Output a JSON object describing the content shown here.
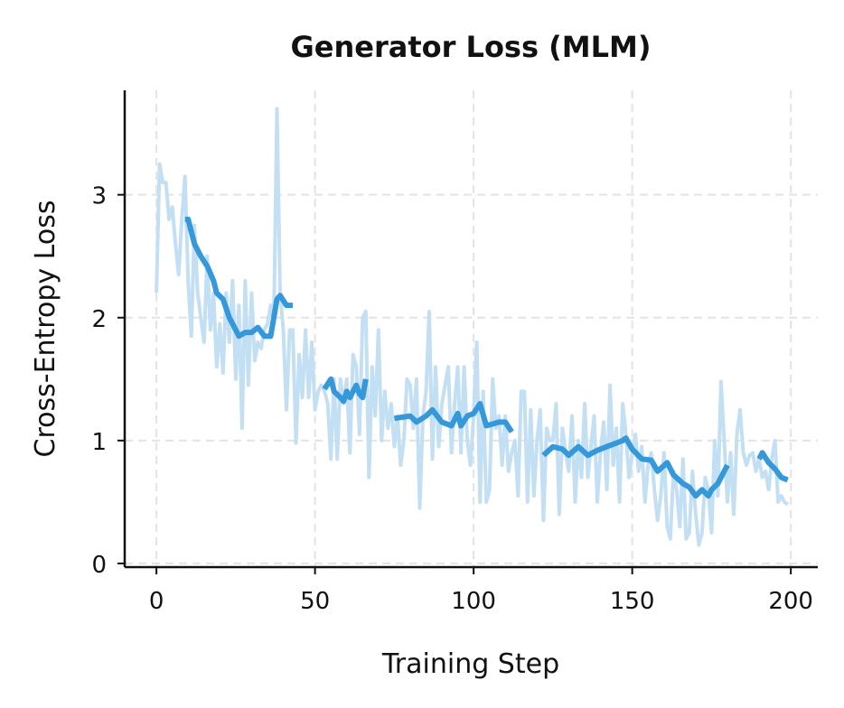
{
  "chart_data": {
    "type": "line",
    "title": "Generator Loss (MLM)",
    "xlabel": "Training Step",
    "ylabel": "Cross-Entropy Loss",
    "xlim": [
      -10,
      208.5
    ],
    "ylim": [
      -0.03,
      3.85
    ],
    "xticks": [
      0,
      50,
      100,
      150,
      200
    ],
    "yticks": [
      0,
      1,
      2,
      3
    ],
    "grid": true,
    "legend": "none",
    "colors": {
      "raw": "#c3dff4",
      "smoothed": "#3498db",
      "grid": "#e3e3e3",
      "axis": "#111111"
    },
    "series": [
      {
        "role": "raw",
        "x_start": 0,
        "values": [
          2.2,
          3.25,
          3.1,
          3.1,
          2.8,
          2.9,
          2.6,
          2.35,
          2.8,
          3.15,
          2.3,
          1.85,
          2.75,
          2.2,
          2.0,
          1.8,
          2.5,
          1.9,
          2.2,
          1.6,
          1.95,
          1.55,
          2.2,
          1.8,
          2.3,
          1.5,
          2.1,
          1.1,
          2.3,
          1.45,
          2.2,
          1.65,
          1.8,
          1.75,
          1.9,
          1.95,
          2.1,
          1.95,
          3.7,
          2.2,
          1.9,
          1.25,
          1.9,
          1.9,
          0.98,
          1.7,
          1.35,
          1.9,
          1.35,
          1.8,
          1.25,
          1.4,
          1.45,
          1.4,
          1.3,
          0.85,
          1.5,
          0.85,
          1.5,
          1.3,
          1.5,
          0.9,
          1.7,
          1.6,
          1.05,
          2.0,
          2.05,
          0.7,
          1.6,
          1.2,
          1.9,
          1.0,
          1.4,
          1.1,
          1.3,
          0.95,
          1.2,
          0.8,
          1.0,
          1.5,
          1.45,
          1.1,
          1.5,
          0.45,
          1.2,
          1.4,
          2.05,
          0.85,
          1.6,
          0.95,
          1.3,
          1.45,
          1.6,
          0.9,
          1.3,
          1.6,
          0.9,
          1.6,
          1.0,
          0.8,
          1.2,
          1.8,
          0.5,
          1.4,
          0.5,
          0.6,
          1.5,
          1.1,
          1.2,
          0.8,
          1.2,
          0.75,
          0.9,
          1.0,
          0.55,
          1.4,
          1.4,
          0.5,
          1.25,
          0.55,
          1.0,
          1.25,
          0.35,
          1.1,
          1.0,
          1.0,
          1.3,
          0.4,
          1.1,
          0.9,
          0.75,
          1.2,
          0.5,
          1.0,
          0.7,
          1.3,
          0.7,
          0.95,
          1.2,
          0.5,
          0.9,
          1.15,
          0.6,
          1.45,
          0.8,
          1.1,
          0.5,
          1.3,
          1.05,
          0.7,
          0.9,
          1.05,
          0.75,
          0.95,
          0.5,
          0.8,
          0.9,
          0.6,
          0.35,
          0.55,
          0.9,
          0.3,
          0.2,
          0.75,
          0.6,
          0.3,
          0.85,
          0.2,
          0.25,
          0.75,
          0.4,
          0.15,
          0.25,
          0.7,
          0.6,
          0.25,
          1.0,
          0.55,
          1.48,
          1.0,
          0.5,
          0.9,
          0.4,
          1.05,
          1.25,
          0.9,
          0.8,
          0.88,
          0.9,
          0.75,
          0.85,
          0.7,
          0.75,
          0.6,
          0.85,
          1.0,
          0.5,
          0.55,
          0.5,
          0.48
        ]
      },
      {
        "role": "smoothed",
        "segments": [
          {
            "x": [
              9,
              10,
              12,
              14,
              16,
              18,
              19,
              21,
              23,
              25,
              26,
              28,
              30,
              32,
              34,
              36,
              38,
              39,
              41,
              43
            ],
            "y": [
              2.8,
              2.8,
              2.6,
              2.5,
              2.42,
              2.3,
              2.2,
              2.15,
              2.0,
              1.9,
              1.85,
              1.88,
              1.88,
              1.92,
              1.85,
              1.85,
              2.15,
              2.18,
              2.1,
              2.1
            ]
          },
          {
            "x": [
              53,
              55,
              56,
              58,
              59,
              60,
              61,
              62,
              63,
              64,
              65,
              66
            ],
            "y": [
              1.42,
              1.5,
              1.4,
              1.35,
              1.32,
              1.4,
              1.35,
              1.4,
              1.45,
              1.38,
              1.35,
              1.5
            ]
          },
          {
            "x": [
              75,
              80,
              82,
              85,
              87,
              90,
              93,
              95,
              96,
              98,
              100,
              102,
              104,
              108,
              110,
              112
            ],
            "y": [
              1.18,
              1.2,
              1.15,
              1.2,
              1.25,
              1.15,
              1.12,
              1.22,
              1.12,
              1.2,
              1.22,
              1.3,
              1.12,
              1.15,
              1.15,
              1.07
            ]
          },
          {
            "x": [
              122,
              125,
              128,
              130,
              133,
              136,
              139,
              142,
              145,
              147,
              148,
              150,
              153,
              156,
              158,
              161,
              163,
              166,
              168,
              170,
              172,
              174,
              175,
              177,
              179,
              180
            ],
            "y": [
              0.88,
              0.95,
              0.93,
              0.88,
              0.95,
              0.88,
              0.92,
              0.95,
              0.98,
              1.0,
              1.02,
              0.93,
              0.85,
              0.84,
              0.75,
              0.82,
              0.72,
              0.65,
              0.62,
              0.55,
              0.6,
              0.55,
              0.6,
              0.65,
              0.75,
              0.8
            ]
          },
          {
            "x": [
              190,
              191,
              193,
              195,
              197,
              199
            ],
            "y": [
              0.85,
              0.9,
              0.82,
              0.77,
              0.7,
              0.68
            ]
          }
        ]
      }
    ]
  }
}
